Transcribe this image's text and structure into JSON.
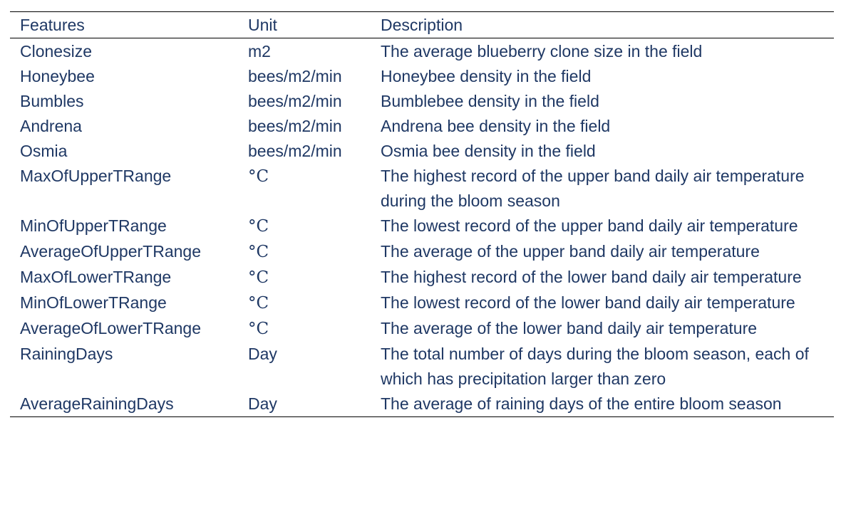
{
  "table": {
    "headers": {
      "features": "Features",
      "unit": "Unit",
      "description": "Description"
    },
    "rows": [
      {
        "feature": "Clonesize",
        "unit": "m2",
        "description": "The average blueberry clone size in the field"
      },
      {
        "feature": "Honeybee",
        "unit": "bees/m2/min",
        "description": "Honeybee density in the field"
      },
      {
        "feature": "Bumbles",
        "unit": "bees/m2/min",
        "description": "Bumblebee density in the field"
      },
      {
        "feature": "Andrena",
        "unit": "bees/m2/min",
        "description": "Andrena bee density in the field"
      },
      {
        "feature": "Osmia",
        "unit": "bees/m2/min",
        "description": "Osmia bee density in the field"
      },
      {
        "feature": "MaxOfUpperTRange",
        "unit": "°C",
        "description": "The highest record of the upper band daily air temperature during the bloom season"
      },
      {
        "feature": "MinOfUpperTRange",
        "unit": "°C",
        "description": "The lowest record of the upper band daily air temperature"
      },
      {
        "feature": "AverageOfUpperTRange",
        "unit": "°C",
        "description": "The average of the upper band daily air temperature"
      },
      {
        "feature": "MaxOfLowerTRange",
        "unit": "°C",
        "description": "The highest record of the lower band daily air temperature"
      },
      {
        "feature": "MinOfLowerTRange",
        "unit": "°C",
        "description": "The lowest record of the lower band daily air temperature"
      },
      {
        "feature": "AverageOfLowerTRange",
        "unit": "°C",
        "description": "The average of the lower band daily air temperature"
      },
      {
        "feature": "RainingDays",
        "unit": "Day",
        "description": "The total number of days during the bloom season, each of which has precipitation larger than zero"
      },
      {
        "feature": "AverageRainingDays",
        "unit": "Day",
        "description": "The average of raining days of the entire bloom season"
      }
    ]
  }
}
